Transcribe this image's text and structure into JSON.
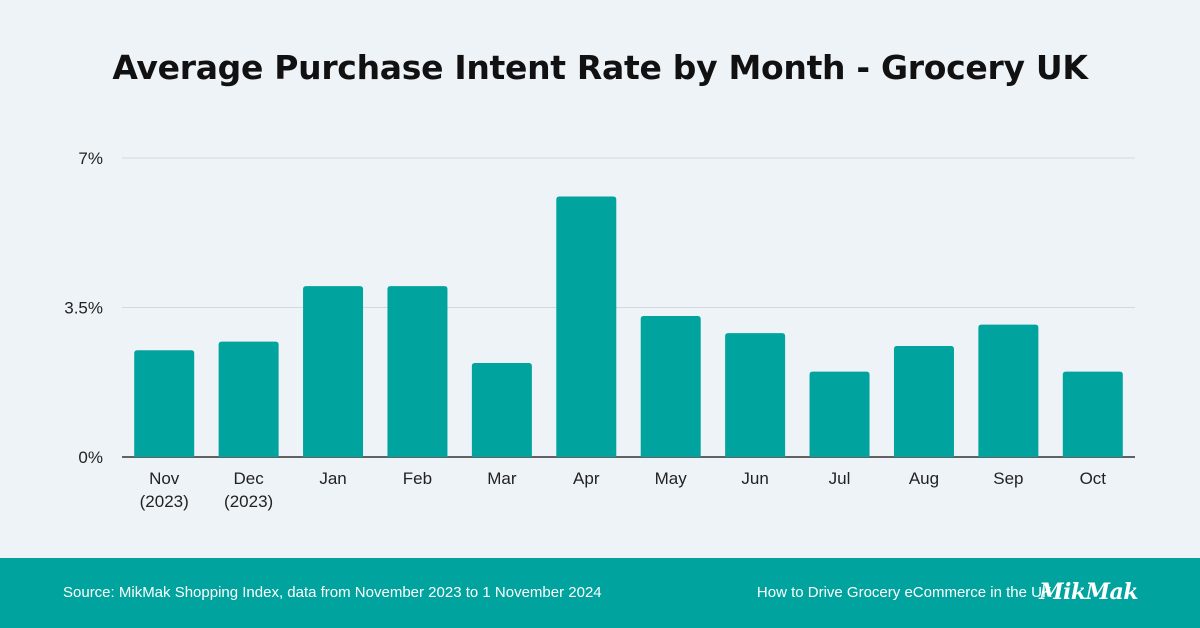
{
  "chart_data": {
    "type": "bar",
    "title": "Average Purchase Intent Rate by Month - Grocery UK",
    "categories": [
      "Nov (2023)",
      "Dec (2023)",
      "Jan",
      "Feb",
      "Mar",
      "Apr",
      "May",
      "Jun",
      "Jul",
      "Aug",
      "Sep",
      "Oct"
    ],
    "category_lines": [
      [
        "Nov",
        "(2023)"
      ],
      [
        "Dec",
        "(2023)"
      ],
      [
        "Jan"
      ],
      [
        "Feb"
      ],
      [
        "Mar"
      ],
      [
        "Apr"
      ],
      [
        "May"
      ],
      [
        "Jun"
      ],
      [
        "Jul"
      ],
      [
        "Aug"
      ],
      [
        "Sep"
      ],
      [
        "Oct"
      ]
    ],
    "values": [
      2.5,
      2.7,
      4.0,
      4.0,
      2.2,
      6.1,
      3.3,
      2.9,
      2.0,
      2.6,
      3.1,
      2.0
    ],
    "unit": "%",
    "ylim": [
      0,
      7
    ],
    "yticks": [
      0,
      3.5,
      7
    ],
    "ytick_labels": [
      "0%",
      "3.5%",
      "7%"
    ],
    "xlabel": "",
    "ylabel": "",
    "grid": true,
    "bar_color": "#00a39d"
  },
  "footer": {
    "source": "Source: MikMak Shopping Index, data from November 2023 to 1 November 2024",
    "article": "How to Drive Grocery eCommerce in the UK",
    "logo": "MikMak",
    "background": "#00a39d"
  }
}
